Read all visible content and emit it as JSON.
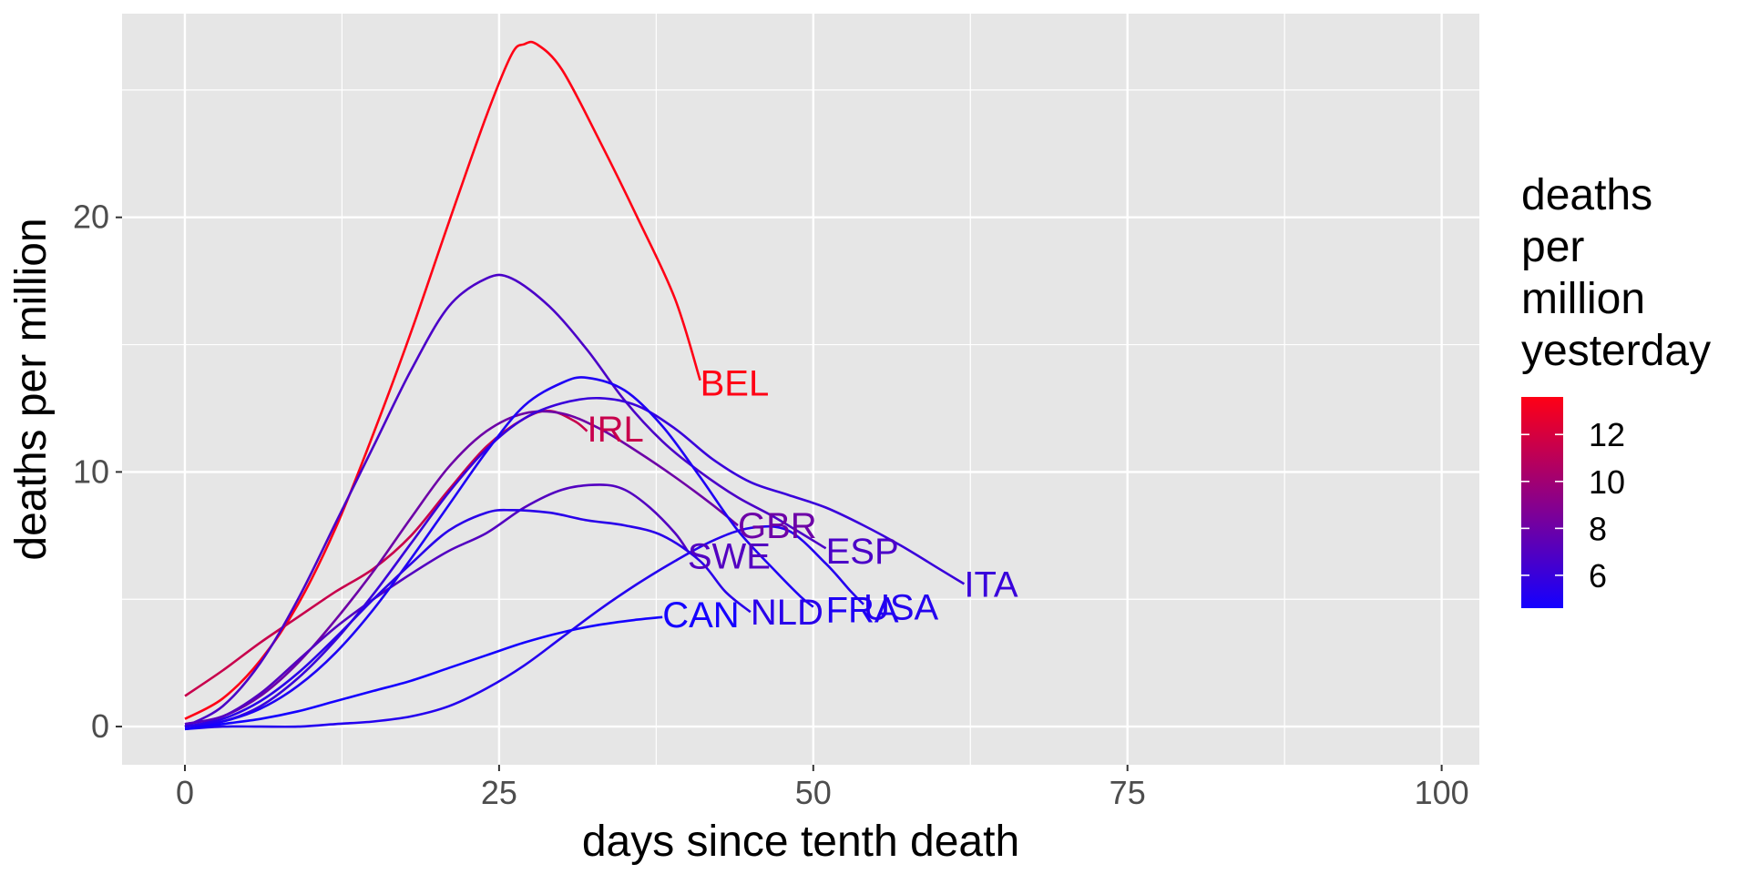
{
  "chart_data": {
    "type": "line",
    "title": "",
    "xlabel": "days since tenth death",
    "ylabel": "deaths per million",
    "xlim": [
      -5,
      103
    ],
    "ylim": [
      -1.5,
      28
    ],
    "x_ticks": [
      0,
      25,
      50,
      75,
      100
    ],
    "y_ticks": [
      0,
      10,
      20
    ],
    "grid": true,
    "legend": {
      "title_lines": [
        "deaths",
        "per",
        "million",
        "yesterday"
      ],
      "placement": "right",
      "min": 4.6,
      "max": 13.6,
      "low_color": "#1400ff",
      "high_color": "#ff0015",
      "ticks": [
        6,
        8,
        10,
        12
      ]
    },
    "colors": {
      "panel_background": "#e6e6e6",
      "grid": "#ffffff"
    },
    "series": [
      {
        "name": "BEL",
        "color_value": 13.6,
        "label_at": [
          41,
          13.5
        ],
        "points": [
          [
            0,
            0.3
          ],
          [
            3,
            1.1
          ],
          [
            6,
            2.6
          ],
          [
            9,
            4.8
          ],
          [
            12,
            7.8
          ],
          [
            15,
            11.5
          ],
          [
            18,
            15.5
          ],
          [
            21,
            19.8
          ],
          [
            24,
            24.0
          ],
          [
            26,
            26.4
          ],
          [
            27,
            26.8
          ],
          [
            28,
            26.8
          ],
          [
            30,
            25.8
          ],
          [
            33,
            23.0
          ],
          [
            36,
            20.0
          ],
          [
            39,
            16.8
          ],
          [
            41,
            13.6
          ]
        ]
      },
      {
        "name": "IRL",
        "color_value": 11.5,
        "label_at": [
          32,
          11.7
        ],
        "points": [
          [
            0,
            1.2
          ],
          [
            3,
            2.2
          ],
          [
            6,
            3.3
          ],
          [
            9,
            4.3
          ],
          [
            12,
            5.3
          ],
          [
            15,
            6.2
          ],
          [
            18,
            7.5
          ],
          [
            21,
            9.3
          ],
          [
            24,
            11.0
          ],
          [
            27,
            12.1
          ],
          [
            29,
            12.4
          ],
          [
            31,
            12.0
          ],
          [
            32,
            11.6
          ]
        ]
      },
      {
        "name": "GBR",
        "color_value": 8.0,
        "label_at": [
          44,
          7.9
        ],
        "points": [
          [
            0,
            0.1
          ],
          [
            3,
            0.4
          ],
          [
            6,
            1.2
          ],
          [
            9,
            2.5
          ],
          [
            12,
            4.2
          ],
          [
            15,
            6.1
          ],
          [
            18,
            8.2
          ],
          [
            21,
            10.2
          ],
          [
            24,
            11.6
          ],
          [
            27,
            12.3
          ],
          [
            30,
            12.3
          ],
          [
            33,
            11.7
          ],
          [
            36,
            10.8
          ],
          [
            39,
            9.8
          ],
          [
            42,
            8.7
          ],
          [
            44,
            7.9
          ]
        ]
      },
      {
        "name": "ESP",
        "color_value": 6.7,
        "label_at": [
          51,
          6.9
        ],
        "points": [
          [
            0,
            0.0
          ],
          [
            3,
            0.8
          ],
          [
            6,
            2.5
          ],
          [
            9,
            5.0
          ],
          [
            12,
            8.0
          ],
          [
            15,
            11.0
          ],
          [
            18,
            14.0
          ],
          [
            21,
            16.5
          ],
          [
            24,
            17.6
          ],
          [
            26,
            17.6
          ],
          [
            29,
            16.5
          ],
          [
            32,
            14.8
          ],
          [
            35,
            12.8
          ],
          [
            38,
            11.2
          ],
          [
            41,
            10.0
          ],
          [
            44,
            9.0
          ],
          [
            47,
            8.2
          ],
          [
            51,
            7.0
          ]
        ]
      },
      {
        "name": "SWE",
        "color_value": 7.0,
        "label_at": [
          40,
          6.7
        ],
        "points": [
          [
            0,
            0.1
          ],
          [
            3,
            0.4
          ],
          [
            6,
            1.3
          ],
          [
            9,
            2.6
          ],
          [
            12,
            3.9
          ],
          [
            15,
            5.0
          ],
          [
            18,
            6.0
          ],
          [
            21,
            6.9
          ],
          [
            24,
            7.6
          ],
          [
            27,
            8.6
          ],
          [
            30,
            9.3
          ],
          [
            33,
            9.5
          ],
          [
            35,
            9.3
          ],
          [
            37,
            8.6
          ],
          [
            39,
            7.6
          ],
          [
            40,
            6.9
          ]
        ]
      },
      {
        "name": "ITA",
        "color_value": 6.0,
        "label_at": [
          62,
          5.6
        ],
        "points": [
          [
            0,
            0.0
          ],
          [
            3,
            0.2
          ],
          [
            6,
            0.8
          ],
          [
            9,
            1.9
          ],
          [
            12,
            3.4
          ],
          [
            15,
            5.2
          ],
          [
            18,
            7.2
          ],
          [
            21,
            9.2
          ],
          [
            24,
            10.9
          ],
          [
            27,
            12.1
          ],
          [
            30,
            12.7
          ],
          [
            33,
            12.9
          ],
          [
            36,
            12.6
          ],
          [
            39,
            11.7
          ],
          [
            42,
            10.5
          ],
          [
            45,
            9.6
          ],
          [
            48,
            9.1
          ],
          [
            51,
            8.6
          ],
          [
            54,
            7.9
          ],
          [
            57,
            7.1
          ],
          [
            60,
            6.2
          ],
          [
            62,
            5.6
          ]
        ]
      },
      {
        "name": "FRA",
        "color_value": 5.0,
        "label_at": [
          51,
          4.6
        ],
        "points": [
          [
            0,
            0.0
          ],
          [
            3,
            0.2
          ],
          [
            6,
            0.7
          ],
          [
            9,
            1.6
          ],
          [
            12,
            2.9
          ],
          [
            15,
            4.6
          ],
          [
            18,
            6.6
          ],
          [
            21,
            8.7
          ],
          [
            24,
            10.8
          ],
          [
            27,
            12.6
          ],
          [
            30,
            13.5
          ],
          [
            32,
            13.7
          ],
          [
            35,
            13.2
          ],
          [
            38,
            11.8
          ],
          [
            41,
            9.8
          ],
          [
            44,
            7.7
          ],
          [
            47,
            6.1
          ],
          [
            49,
            5.1
          ],
          [
            50,
            4.7
          ]
        ]
      },
      {
        "name": "USA",
        "color_value": 5.2,
        "label_at": [
          54,
          4.7
        ],
        "points": [
          [
            0,
            -0.1
          ],
          [
            3,
            0.0
          ],
          [
            6,
            0.0
          ],
          [
            9,
            0.0
          ],
          [
            12,
            0.1
          ],
          [
            15,
            0.2
          ],
          [
            18,
            0.4
          ],
          [
            21,
            0.8
          ],
          [
            24,
            1.5
          ],
          [
            27,
            2.4
          ],
          [
            30,
            3.5
          ],
          [
            33,
            4.6
          ],
          [
            36,
            5.6
          ],
          [
            39,
            6.5
          ],
          [
            42,
            7.3
          ],
          [
            45,
            7.8
          ],
          [
            48,
            7.7
          ],
          [
            51,
            6.4
          ],
          [
            53,
            5.3
          ],
          [
            54,
            4.8
          ]
        ]
      },
      {
        "name": "NLD",
        "color_value": 5.4,
        "label_at": [
          45,
          4.5
        ],
        "points": [
          [
            0,
            0.0
          ],
          [
            3,
            0.3
          ],
          [
            6,
            1.0
          ],
          [
            9,
            2.1
          ],
          [
            12,
            3.5
          ],
          [
            15,
            5.0
          ],
          [
            18,
            6.4
          ],
          [
            21,
            7.7
          ],
          [
            24,
            8.4
          ],
          [
            26,
            8.5
          ],
          [
            29,
            8.4
          ],
          [
            32,
            8.1
          ],
          [
            35,
            7.9
          ],
          [
            38,
            7.5
          ],
          [
            41,
            6.5
          ],
          [
            43,
            5.3
          ],
          [
            45,
            4.5
          ]
        ]
      },
      {
        "name": "CAN",
        "color_value": 4.6,
        "label_at": [
          38,
          4.4
        ],
        "points": [
          [
            0,
            -0.1
          ],
          [
            3,
            0.1
          ],
          [
            6,
            0.3
          ],
          [
            9,
            0.6
          ],
          [
            12,
            1.0
          ],
          [
            15,
            1.4
          ],
          [
            18,
            1.8
          ],
          [
            21,
            2.3
          ],
          [
            24,
            2.8
          ],
          [
            27,
            3.3
          ],
          [
            30,
            3.7
          ],
          [
            33,
            4.0
          ],
          [
            36,
            4.2
          ],
          [
            38,
            4.3
          ]
        ]
      }
    ]
  }
}
